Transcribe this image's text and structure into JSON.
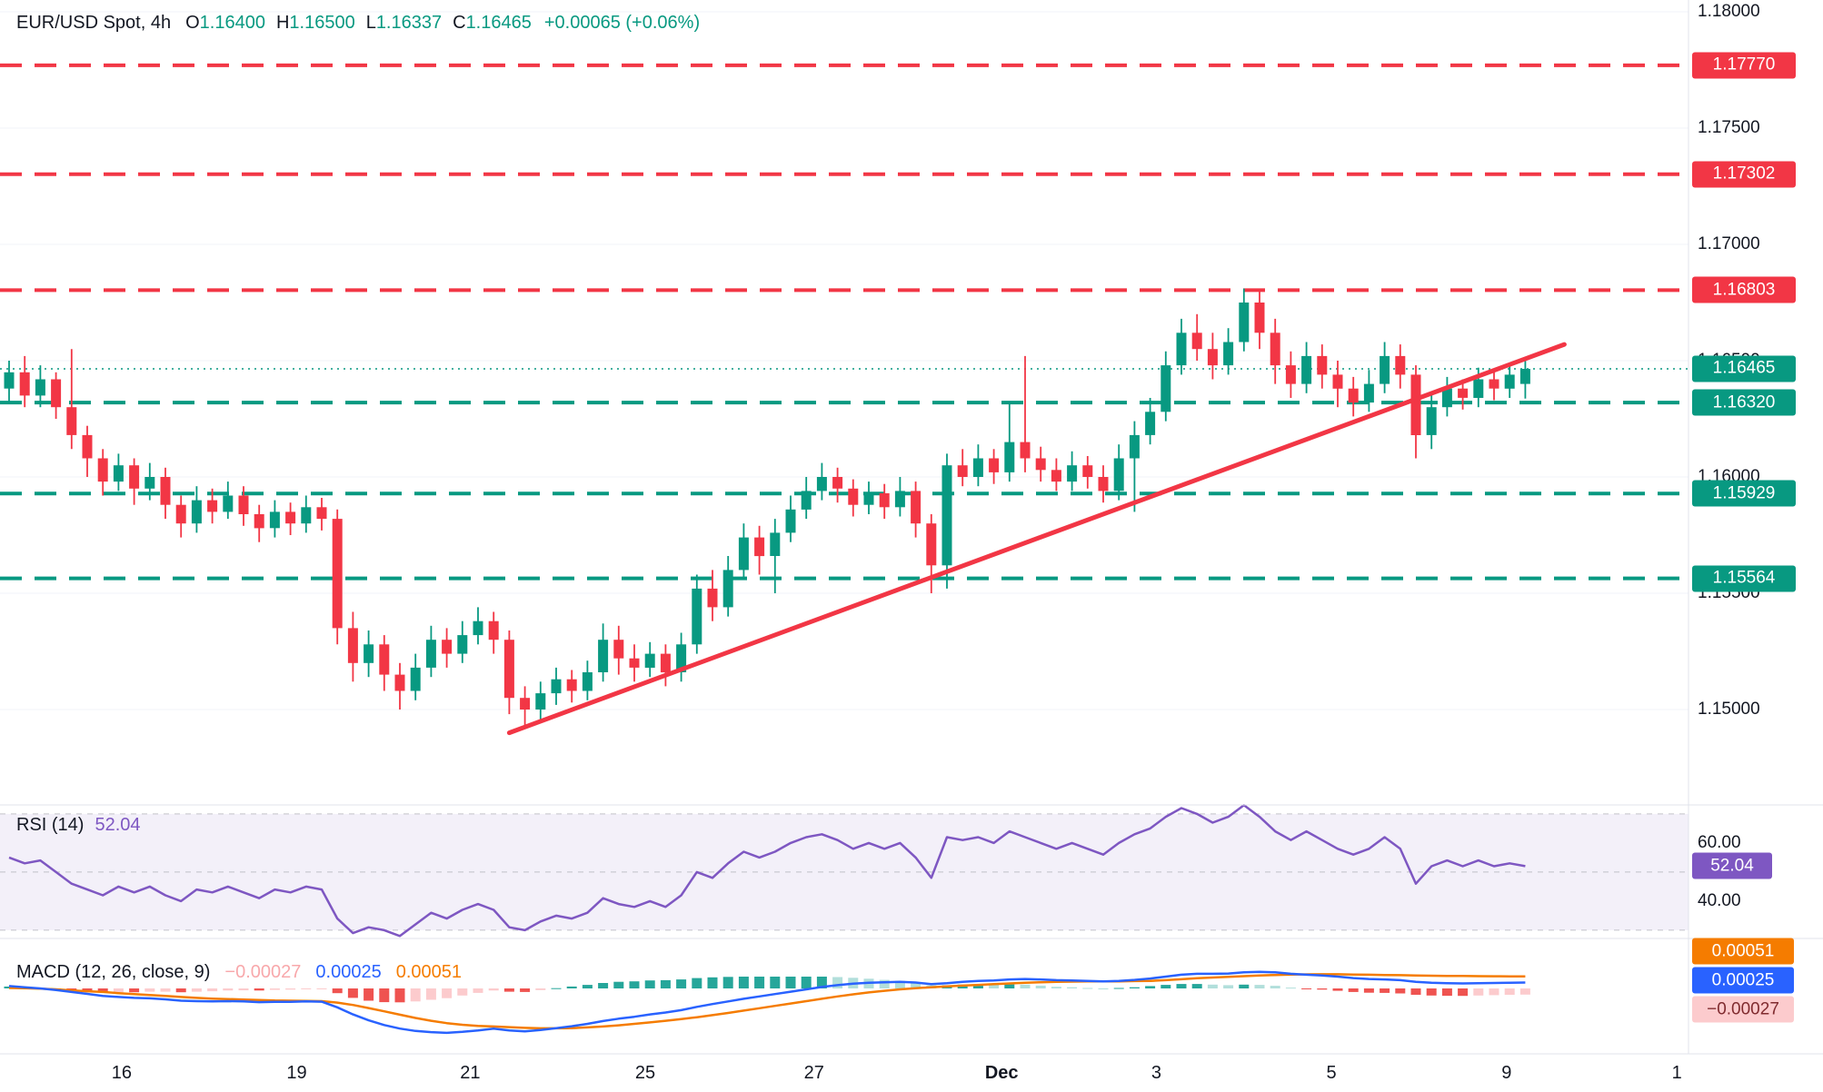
{
  "header": {
    "symbol": "EUR/USD Spot, 4h",
    "ohlc": [
      {
        "k": "O",
        "v": "1.16400"
      },
      {
        "k": "H",
        "v": "1.16500"
      },
      {
        "k": "L",
        "v": "1.16337"
      },
      {
        "k": "C",
        "v": "1.16465"
      }
    ],
    "change": "+0.00065 (+0.06%)"
  },
  "indicators": {
    "rsi": {
      "title": "RSI (14)",
      "value": "52.04"
    },
    "macd": {
      "title": "MACD (12, 26, close, 9)",
      "hist": "−0.00027",
      "macd": "0.00025",
      "signal": "0.00051"
    }
  },
  "colors": {
    "up": "#089981",
    "down": "#f23645",
    "grid": "#f0f3fa",
    "text": "#131722",
    "separator": "#e0e3eb",
    "axis_dashed": "#9598a1",
    "rsi": "#7e57c2",
    "rsi_band": "rgba(126,87,194,0.09)",
    "macd": "#2962ff",
    "signal": "#f57c00",
    "hist_up_grow": "#26a69a",
    "hist_up_fall": "#b2dfdb",
    "hist_dn_fall": "#ef5350",
    "hist_dn_grow": "#fccbcd",
    "hist_badge_bg": "#fccbcd",
    "hist_badge_fg": "#802b2f"
  },
  "chart_data": {
    "type": "candlestick",
    "symbol": "EUR/USD Spot",
    "timeframe": "4h",
    "grid": "faint-horizontal",
    "ylim": [
      1.146,
      1.18
    ],
    "price_axis_ticks": [
      {
        "label": "1.18000",
        "price": 1.18
      },
      {
        "label": "1.17500",
        "price": 1.175
      },
      {
        "label": "1.17000",
        "price": 1.17
      },
      {
        "label": "1.16500",
        "price": 1.165
      },
      {
        "label": "1.16000",
        "price": 1.16
      },
      {
        "label": "1.15500",
        "price": 1.155
      },
      {
        "label": "1.15000",
        "price": 1.15
      }
    ],
    "levels": {
      "resistance": [
        {
          "label": "1.17770",
          "price": 1.1777
        },
        {
          "label": "1.17302",
          "price": 1.17302
        },
        {
          "label": "1.16803",
          "price": 1.16803
        }
      ],
      "support": [
        {
          "label": "1.16320",
          "price": 1.1632
        },
        {
          "label": "1.15929",
          "price": 1.15929
        },
        {
          "label": "1.15564",
          "price": 1.15564
        }
      ]
    },
    "current_price_line": {
      "label": "1.16465",
      "price": 1.16465
    },
    "trendline": {
      "from": {
        "index": 32,
        "price": 1.149
      },
      "to": {
        "index": 99.5,
        "price": 1.1657
      }
    },
    "x_ticks": [
      {
        "label": "16",
        "index": 7.2
      },
      {
        "label": "19",
        "index": 18.4
      },
      {
        "label": "21",
        "index": 29.5
      },
      {
        "label": "25",
        "index": 40.7
      },
      {
        "label": "27",
        "index": 51.5
      },
      {
        "label": "Dec",
        "index": 63.5,
        "bold": true
      },
      {
        "label": "3",
        "index": 73.4
      },
      {
        "label": "5",
        "index": 84.6
      },
      {
        "label": "9",
        "index": 95.8
      },
      {
        "label": "1",
        "index": 106.7
      }
    ],
    "candles": [
      [
        1.1638,
        1.165,
        1.1632,
        1.1645
      ],
      [
        1.1645,
        1.1652,
        1.163,
        1.1635
      ],
      [
        1.1635,
        1.1648,
        1.163,
        1.1642
      ],
      [
        1.1642,
        1.1645,
        1.1625,
        1.163
      ],
      [
        1.163,
        1.1655,
        1.1612,
        1.1618
      ],
      [
        1.1618,
        1.1622,
        1.16,
        1.1608
      ],
      [
        1.1608,
        1.1612,
        1.1592,
        1.1598
      ],
      [
        1.1598,
        1.161,
        1.1594,
        1.1605
      ],
      [
        1.1605,
        1.1608,
        1.1588,
        1.1595
      ],
      [
        1.1595,
        1.1606,
        1.159,
        1.16
      ],
      [
        1.16,
        1.1604,
        1.1582,
        1.1588
      ],
      [
        1.1588,
        1.1592,
        1.1574,
        1.158
      ],
      [
        1.158,
        1.1596,
        1.1576,
        1.159
      ],
      [
        1.159,
        1.1595,
        1.158,
        1.1585
      ],
      [
        1.1585,
        1.1598,
        1.1582,
        1.1592
      ],
      [
        1.1592,
        1.1596,
        1.1579,
        1.1584
      ],
      [
        1.1584,
        1.1588,
        1.1572,
        1.1578
      ],
      [
        1.1578,
        1.159,
        1.1574,
        1.1585
      ],
      [
        1.1585,
        1.1589,
        1.1575,
        1.158
      ],
      [
        1.158,
        1.1592,
        1.1576,
        1.1587
      ],
      [
        1.1587,
        1.1591,
        1.1577,
        1.1582
      ],
      [
        1.1582,
        1.1586,
        1.1528,
        1.1535
      ],
      [
        1.1535,
        1.1542,
        1.1512,
        1.152
      ],
      [
        1.152,
        1.1534,
        1.1514,
        1.1528
      ],
      [
        1.1528,
        1.1532,
        1.1508,
        1.1515
      ],
      [
        1.1515,
        1.152,
        1.15,
        1.1508
      ],
      [
        1.1508,
        1.1524,
        1.1504,
        1.1518
      ],
      [
        1.1518,
        1.1536,
        1.1514,
        1.153
      ],
      [
        1.153,
        1.1535,
        1.1518,
        1.1524
      ],
      [
        1.1524,
        1.1538,
        1.152,
        1.1532
      ],
      [
        1.1532,
        1.1544,
        1.1528,
        1.1538
      ],
      [
        1.1538,
        1.1542,
        1.1524,
        1.153
      ],
      [
        1.153,
        1.1534,
        1.1498,
        1.1505
      ],
      [
        1.1505,
        1.151,
        1.1492,
        1.15
      ],
      [
        1.15,
        1.1512,
        1.1495,
        1.1507
      ],
      [
        1.1507,
        1.1518,
        1.1502,
        1.1513
      ],
      [
        1.1513,
        1.1517,
        1.1503,
        1.1508
      ],
      [
        1.1508,
        1.1521,
        1.1504,
        1.1516
      ],
      [
        1.1516,
        1.1537,
        1.1512,
        1.153
      ],
      [
        1.153,
        1.1536,
        1.1515,
        1.1522
      ],
      [
        1.1522,
        1.1528,
        1.1512,
        1.1518
      ],
      [
        1.1518,
        1.1529,
        1.1514,
        1.1524
      ],
      [
        1.1524,
        1.1528,
        1.151,
        1.1516
      ],
      [
        1.1516,
        1.1533,
        1.1512,
        1.1528
      ],
      [
        1.1528,
        1.1558,
        1.1524,
        1.1552
      ],
      [
        1.1552,
        1.156,
        1.1538,
        1.1544
      ],
      [
        1.1544,
        1.1566,
        1.154,
        1.156
      ],
      [
        1.156,
        1.158,
        1.1556,
        1.1574
      ],
      [
        1.1574,
        1.1579,
        1.1558,
        1.1566
      ],
      [
        1.1566,
        1.1582,
        1.155,
        1.1576
      ],
      [
        1.1576,
        1.1592,
        1.1572,
        1.1586
      ],
      [
        1.1586,
        1.16,
        1.1582,
        1.1594
      ],
      [
        1.1594,
        1.1606,
        1.159,
        1.16
      ],
      [
        1.16,
        1.1604,
        1.1589,
        1.1595
      ],
      [
        1.1595,
        1.1599,
        1.1583,
        1.1588
      ],
      [
        1.1588,
        1.1598,
        1.1584,
        1.1593
      ],
      [
        1.1593,
        1.1597,
        1.1582,
        1.1587
      ],
      [
        1.1587,
        1.16,
        1.1583,
        1.1594
      ],
      [
        1.1594,
        1.1598,
        1.1574,
        1.158
      ],
      [
        1.158,
        1.1584,
        1.155,
        1.1562
      ],
      [
        1.1562,
        1.161,
        1.1552,
        1.1605
      ],
      [
        1.1605,
        1.1612,
        1.1596,
        1.16
      ],
      [
        1.16,
        1.1614,
        1.1596,
        1.1608
      ],
      [
        1.1608,
        1.1612,
        1.1597,
        1.1602
      ],
      [
        1.1602,
        1.1632,
        1.1598,
        1.1615
      ],
      [
        1.1615,
        1.1652,
        1.1602,
        1.1608
      ],
      [
        1.1608,
        1.1613,
        1.1598,
        1.1603
      ],
      [
        1.1603,
        1.1608,
        1.1594,
        1.1598
      ],
      [
        1.1598,
        1.1611,
        1.1594,
        1.1605
      ],
      [
        1.1605,
        1.1609,
        1.1595,
        1.16
      ],
      [
        1.16,
        1.1605,
        1.1589,
        1.1594
      ],
      [
        1.1594,
        1.1614,
        1.159,
        1.1608
      ],
      [
        1.1608,
        1.1624,
        1.1585,
        1.1618
      ],
      [
        1.1618,
        1.1634,
        1.1614,
        1.1628
      ],
      [
        1.1628,
        1.1654,
        1.1624,
        1.1648
      ],
      [
        1.1648,
        1.1668,
        1.1644,
        1.1662
      ],
      [
        1.1662,
        1.167,
        1.165,
        1.1655
      ],
      [
        1.1655,
        1.1662,
        1.1642,
        1.1648
      ],
      [
        1.1648,
        1.1664,
        1.1644,
        1.1658
      ],
      [
        1.1658,
        1.1681,
        1.1654,
        1.1675
      ],
      [
        1.1675,
        1.168,
        1.1655,
        1.1662
      ],
      [
        1.1662,
        1.1668,
        1.164,
        1.1648
      ],
      [
        1.1648,
        1.1654,
        1.1634,
        1.164
      ],
      [
        1.164,
        1.1658,
        1.1636,
        1.1652
      ],
      [
        1.1652,
        1.1657,
        1.1638,
        1.1644
      ],
      [
        1.1644,
        1.165,
        1.163,
        1.1638
      ],
      [
        1.1638,
        1.1643,
        1.1626,
        1.1632
      ],
      [
        1.1632,
        1.1646,
        1.1628,
        1.164
      ],
      [
        1.164,
        1.1658,
        1.1636,
        1.1652
      ],
      [
        1.1652,
        1.1657,
        1.1638,
        1.1644
      ],
      [
        1.1644,
        1.1648,
        1.1608,
        1.1618
      ],
      [
        1.1618,
        1.1636,
        1.1612,
        1.163
      ],
      [
        1.163,
        1.1643,
        1.1626,
        1.1638
      ],
      [
        1.1638,
        1.1642,
        1.1629,
        1.1634
      ],
      [
        1.1634,
        1.1647,
        1.163,
        1.1642
      ],
      [
        1.1642,
        1.1646,
        1.1633,
        1.1638
      ],
      [
        1.1638,
        1.1649,
        1.1634,
        1.1644
      ],
      [
        1.164,
        1.165,
        1.16337,
        1.16465
      ]
    ],
    "rsi": {
      "type": "line",
      "period": 14,
      "guides": [
        70,
        50,
        30
      ],
      "ticks": [
        {
          "label": "60.00",
          "value": 60
        },
        {
          "label": "40.00",
          "value": 40
        }
      ],
      "badge": {
        "label": "52.04",
        "value": 52.04
      },
      "values": [
        55,
        53,
        54,
        50,
        46,
        44,
        42,
        45,
        43,
        45,
        42,
        40,
        44,
        43,
        45,
        43,
        41,
        44,
        43,
        45,
        44,
        34,
        29,
        31,
        30,
        28,
        32,
        36,
        34,
        37,
        39,
        37,
        31,
        30,
        33,
        35,
        34,
        36,
        41,
        39,
        38,
        40,
        38,
        42,
        50,
        48,
        53,
        57,
        55,
        57,
        60,
        62,
        63,
        61,
        58,
        60,
        58,
        60,
        55,
        48,
        62,
        61,
        62,
        60,
        64,
        62,
        60,
        58,
        60,
        58,
        56,
        60,
        63,
        65,
        69,
        72,
        70,
        67,
        69,
        73,
        69,
        64,
        61,
        64,
        61,
        58,
        56,
        58,
        62,
        58,
        46,
        52,
        54,
        52,
        54,
        52,
        53,
        52.04
      ]
    },
    "macd": {
      "type": "macd",
      "unit": "1e-4",
      "badges": [
        {
          "label": "0.00051",
          "type": "signal"
        },
        {
          "label": "0.00025",
          "type": "macd"
        },
        {
          "label": "−0.00027",
          "type": "hist"
        }
      ],
      "macd_line": [
        1.0,
        0.5,
        0.0,
        -0.7,
        -1.5,
        -2.3,
        -3.2,
        -3.6,
        -4.0,
        -4.2,
        -4.6,
        -5.2,
        -5.4,
        -5.5,
        -5.4,
        -5.5,
        -5.8,
        -5.7,
        -5.7,
        -5.5,
        -5.6,
        -8.0,
        -11.0,
        -13.5,
        -15.5,
        -17.0,
        -18.0,
        -18.5,
        -18.8,
        -18.4,
        -17.8,
        -17.0,
        -17.8,
        -18.2,
        -17.6,
        -16.8,
        -16.0,
        -15.0,
        -13.8,
        -12.8,
        -12.0,
        -11.0,
        -10.2,
        -9.2,
        -7.8,
        -6.6,
        -5.5,
        -4.4,
        -3.4,
        -2.4,
        -1.4,
        -0.4,
        0.6,
        1.4,
        2.0,
        2.4,
        2.6,
        2.8,
        2.5,
        1.8,
        2.2,
        2.8,
        3.2,
        3.4,
        3.8,
        4.0,
        3.8,
        3.5,
        3.4,
        3.2,
        3.0,
        3.2,
        3.6,
        4.2,
        5.0,
        5.8,
        6.2,
        6.2,
        6.3,
        6.8,
        7.0,
        6.8,
        6.2,
        5.8,
        5.5,
        5.0,
        4.4,
        4.0,
        3.8,
        3.5,
        2.8,
        2.4,
        2.2,
        2.1,
        2.2,
        2.3,
        2.4,
        2.5
      ],
      "signal_line": [
        0.2,
        0.1,
        -0.1,
        -0.4,
        -0.8,
        -1.2,
        -1.5,
        -2.0,
        -2.4,
        -2.8,
        -3.2,
        -3.6,
        -4.0,
        -4.3,
        -4.5,
        -4.7,
        -4.9,
        -5.1,
        -5.2,
        -5.3,
        -5.4,
        -6.0,
        -7.0,
        -8.3,
        -9.7,
        -11.1,
        -12.5,
        -13.7,
        -14.7,
        -15.4,
        -15.9,
        -16.1,
        -16.4,
        -16.7,
        -16.9,
        -16.9,
        -16.8,
        -16.5,
        -16.1,
        -15.6,
        -15.0,
        -14.4,
        -13.7,
        -13.0,
        -12.2,
        -11.3,
        -10.4,
        -9.4,
        -8.4,
        -7.4,
        -6.4,
        -5.4,
        -4.4,
        -3.4,
        -2.5,
        -1.7,
        -1.0,
        -0.4,
        0.1,
        0.5,
        0.9,
        1.2,
        1.5,
        1.8,
        2.1,
        2.4,
        2.6,
        2.8,
        2.9,
        3.0,
        3.0,
        3.0,
        3.1,
        3.2,
        3.5,
        3.9,
        4.3,
        4.6,
        4.9,
        5.2,
        5.5,
        5.7,
        5.85,
        5.95,
        6.0,
        6.0,
        5.9,
        5.8,
        5.7,
        5.6,
        5.5,
        5.4,
        5.3,
        5.25,
        5.2,
        5.15,
        5.1,
        5.1
      ]
    }
  }
}
